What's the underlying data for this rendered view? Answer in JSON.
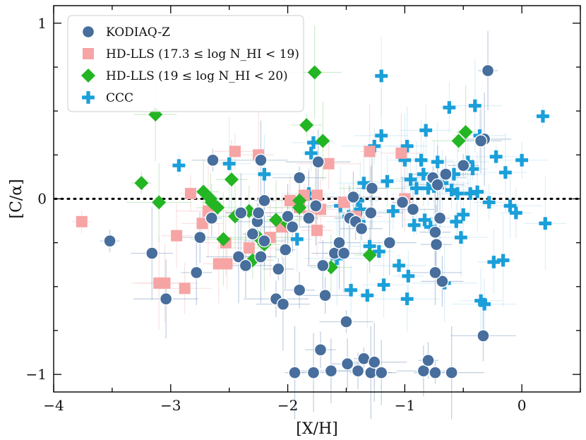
{
  "chart_data": {
    "type": "scatter",
    "title": "",
    "xlabel": "[X/H]",
    "ylabel": "[C/α]",
    "xlim": [
      -4,
      0.5
    ],
    "ylim": [
      -1.1,
      1.1
    ],
    "x_ticks": [
      -4,
      -3,
      -2,
      -1,
      0
    ],
    "x_tick_labels": [
      "−4",
      "−3",
      "−2",
      "−1",
      "0"
    ],
    "y_ticks": [
      -1,
      0,
      1
    ],
    "y_tick_labels": [
      "−1",
      "0",
      "1"
    ],
    "reference_line_y": 0,
    "grid": false,
    "legend_position": "top-left",
    "series": [
      {
        "name": "KODIAQ-Z",
        "marker": "circle",
        "color": "#476e9c",
        "error_color": "#8aa6c6",
        "points": [
          [
            -3.52,
            -0.24
          ],
          [
            -3.16,
            -0.31
          ],
          [
            -3.04,
            -0.57
          ],
          [
            -2.78,
            -0.42
          ],
          [
            -2.75,
            -0.22
          ],
          [
            -2.65,
            -0.11
          ],
          [
            -2.64,
            0.22
          ],
          [
            -2.42,
            -0.33
          ],
          [
            -2.4,
            -0.08
          ],
          [
            -2.36,
            -0.38
          ],
          [
            -2.3,
            -0.2
          ],
          [
            -2.26,
            -0.13
          ],
          [
            -2.25,
            -0.08
          ],
          [
            -2.23,
            -0.33
          ],
          [
            -2.23,
            0.22
          ],
          [
            -2.2,
            -0.01
          ],
          [
            -2.2,
            -0.24
          ],
          [
            -2.1,
            -0.57
          ],
          [
            -2.08,
            -0.4
          ],
          [
            -2.04,
            -0.6
          ],
          [
            -2.02,
            -0.29
          ],
          [
            -2.0,
            -0.1
          ],
          [
            -1.96,
            -0.16
          ],
          [
            -1.9,
            -0.52
          ],
          [
            -1.9,
            0.12
          ],
          [
            -1.82,
            -0.11
          ],
          [
            -1.76,
            -0.04
          ],
          [
            -1.74,
            0.21
          ],
          [
            -1.7,
            -0.38
          ],
          [
            -1.68,
            -0.55
          ],
          [
            -1.6,
            -0.31
          ],
          [
            -1.56,
            -0.25
          ],
          [
            -1.52,
            -0.31
          ],
          [
            -1.47,
            -0.11
          ],
          [
            -1.44,
            0.01
          ],
          [
            -1.42,
            -0.13
          ],
          [
            -1.37,
            -0.17
          ],
          [
            -1.29,
            -0.08
          ],
          [
            -1.28,
            0.06
          ],
          [
            -1.13,
            -0.25
          ],
          [
            -1.02,
            -0.02
          ],
          [
            -0.93,
            -0.06
          ],
          [
            -0.76,
            0.12
          ],
          [
            -0.74,
            -0.19
          ],
          [
            -0.72,
            0.08
          ],
          [
            -0.7,
            -0.11
          ],
          [
            -0.68,
            -0.47
          ],
          [
            -0.65,
            0.14
          ],
          [
            -0.5,
            0.19
          ],
          [
            -0.32,
            0.34
          ],
          [
            -0.29,
            0.73
          ],
          [
            -0.35,
            0.33
          ],
          [
            -0.33,
            -0.78
          ],
          [
            -1.72,
            -0.86
          ],
          [
            -1.5,
            -0.7
          ],
          [
            -1.94,
            -0.99
          ],
          [
            -1.78,
            -0.99
          ],
          [
            -1.63,
            -0.98
          ],
          [
            -1.49,
            -0.94
          ],
          [
            -1.4,
            -0.98
          ],
          [
            -1.35,
            -0.91
          ],
          [
            -1.29,
            -0.99
          ],
          [
            -1.26,
            -0.93
          ],
          [
            -1.2,
            -0.99
          ],
          [
            -0.84,
            -0.98
          ],
          [
            -0.8,
            -0.92
          ],
          [
            -0.74,
            -0.99
          ],
          [
            -0.6,
            -0.99
          ],
          [
            -0.73,
            -0.26
          ],
          [
            -0.74,
            -0.42
          ]
        ]
      },
      {
        "name": "HD-LLS (17.3 ≤ log N_HI < 19)",
        "marker": "square",
        "color": "#f7a4a4",
        "error_color": "#f7c9c9",
        "points": [
          [
            -3.76,
            -0.13
          ],
          [
            -3.1,
            -0.48
          ],
          [
            -3.05,
            -0.48
          ],
          [
            -2.95,
            -0.21
          ],
          [
            -2.88,
            -0.51
          ],
          [
            -2.83,
            0.03
          ],
          [
            -2.73,
            -0.14
          ],
          [
            -2.68,
            -0.07
          ],
          [
            -2.59,
            -0.37
          ],
          [
            -2.53,
            -0.25
          ],
          [
            -2.52,
            -0.37
          ],
          [
            -2.45,
            0.27
          ],
          [
            -2.33,
            -0.28
          ],
          [
            -2.25,
            0.25
          ],
          [
            -2.15,
            -0.22
          ],
          [
            -2.05,
            -0.16
          ],
          [
            -1.98,
            -0.01
          ],
          [
            -1.9,
            -0.05
          ],
          [
            -1.86,
            0.02
          ],
          [
            -1.82,
            -0.1
          ],
          [
            -1.75,
            0.02
          ],
          [
            -1.72,
            -0.06
          ],
          [
            -1.65,
            0.2
          ],
          [
            -1.52,
            -0.02
          ],
          [
            -1.42,
            -0.1
          ],
          [
            -1.3,
            0.27
          ],
          [
            -1.03,
            0.26
          ],
          [
            -1.0,
            0.0
          ],
          [
            -1.75,
            -0.18
          ]
        ]
      },
      {
        "name": "HD-LLS (19 ≤ log N_HI < 20)",
        "marker": "diamond",
        "color": "#23b523",
        "error_color": "#a7dfa7",
        "points": [
          [
            -3.25,
            0.09
          ],
          [
            -3.13,
            0.48
          ],
          [
            -3.1,
            -0.02
          ],
          [
            -2.72,
            0.04
          ],
          [
            -2.66,
            0.0
          ],
          [
            -2.65,
            -0.02
          ],
          [
            -2.6,
            -0.05
          ],
          [
            -2.55,
            -0.23
          ],
          [
            -2.48,
            0.11
          ],
          [
            -2.45,
            -0.1
          ],
          [
            -2.33,
            -0.07
          ],
          [
            -2.3,
            -0.35
          ],
          [
            -2.25,
            -0.22
          ],
          [
            -2.2,
            -0.26
          ],
          [
            -2.1,
            -0.12
          ],
          [
            -2.0,
            -0.14
          ],
          [
            -1.9,
            -0.01
          ],
          [
            -1.9,
            -0.05
          ],
          [
            -1.84,
            0.42
          ],
          [
            -1.77,
            0.72
          ],
          [
            -1.7,
            0.33
          ],
          [
            -1.63,
            -0.39
          ],
          [
            -1.28,
            0.06
          ],
          [
            -1.3,
            -0.32
          ],
          [
            -0.54,
            0.33
          ],
          [
            -0.48,
            0.38
          ]
        ]
      },
      {
        "name": "CCC",
        "marker": "plus",
        "color": "#1a9fd9",
        "error_color": "#bfe3f4",
        "points": [
          [
            -2.93,
            0.19
          ],
          [
            -2.5,
            0.2
          ],
          [
            -2.2,
            0.14
          ],
          [
            -1.92,
            -0.23
          ],
          [
            -1.82,
            0.03
          ],
          [
            -1.8,
            0.26
          ],
          [
            -1.78,
            0.32
          ],
          [
            -1.58,
            -0.34
          ],
          [
            -1.55,
            -0.04
          ],
          [
            -1.48,
            -0.1
          ],
          [
            -1.46,
            -0.52
          ],
          [
            -1.4,
            -0.01
          ],
          [
            -1.39,
            -0.13
          ],
          [
            -1.38,
            -0.06
          ],
          [
            -1.35,
            0.09
          ],
          [
            -1.32,
            -0.55
          ],
          [
            -1.3,
            -0.27
          ],
          [
            -1.26,
            0.3
          ],
          [
            -1.22,
            -0.3
          ],
          [
            -1.2,
            0.36
          ],
          [
            -1.2,
            0.7
          ],
          [
            -1.18,
            -0.49
          ],
          [
            -1.15,
            0.1
          ],
          [
            -1.1,
            -0.07
          ],
          [
            -1.05,
            -0.38
          ],
          [
            -1.0,
            0.22
          ],
          [
            -0.98,
            0.3
          ],
          [
            -0.98,
            -0.57
          ],
          [
            -0.97,
            -0.44
          ],
          [
            -0.95,
            0.11
          ],
          [
            -0.92,
            -0.15
          ],
          [
            -0.9,
            0.06
          ],
          [
            -0.86,
            0.22
          ],
          [
            -0.84,
            0.14
          ],
          [
            -0.82,
            0.39
          ],
          [
            -0.8,
            0.06
          ],
          [
            -0.78,
            -0.16
          ],
          [
            -0.75,
            0.07
          ],
          [
            -0.72,
            0.21
          ],
          [
            -0.68,
            0.09
          ],
          [
            -0.62,
            0.52
          ],
          [
            -0.6,
            0.05
          ],
          [
            -0.58,
            0.14
          ],
          [
            -0.55,
            0.03
          ],
          [
            -0.52,
            -0.22
          ],
          [
            -0.5,
            -0.09
          ],
          [
            -0.46,
            0.21
          ],
          [
            -0.44,
            0.03
          ],
          [
            -0.42,
            0.17
          ],
          [
            -0.4,
            0.53
          ],
          [
            -0.38,
            0.04
          ],
          [
            -0.35,
            -0.58
          ],
          [
            -0.32,
            -0.6
          ],
          [
            -0.28,
            -0.02
          ],
          [
            -0.22,
            0.24
          ],
          [
            -0.16,
            -0.35
          ],
          [
            -0.14,
            0.15
          ],
          [
            -0.1,
            -0.04
          ],
          [
            -0.05,
            -0.08
          ],
          [
            0.0,
            0.22
          ],
          [
            0.18,
            0.47
          ],
          [
            0.2,
            -0.14
          ],
          [
            -0.66,
            -0.48
          ],
          [
            -0.24,
            -0.36
          ],
          [
            -0.36,
            0.36
          ],
          [
            -0.56,
            -0.13
          ],
          [
            -0.83,
            -0.12
          ]
        ]
      }
    ]
  }
}
